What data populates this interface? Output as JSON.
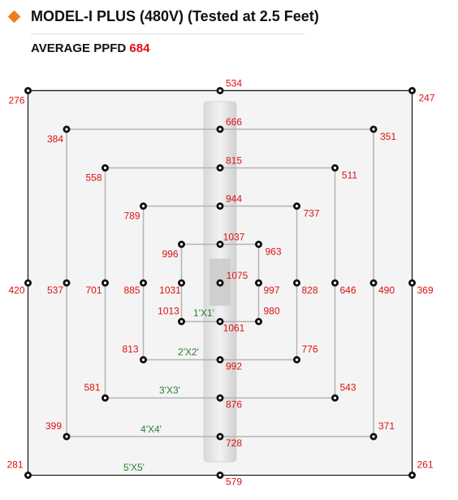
{
  "header": {
    "title": "MODEL-I PLUS (480V) (Tested at 2.5 Feet)",
    "average_label": "AVERAGE PPFD",
    "average_value": 684
  },
  "center": {
    "value": 1075
  },
  "rings": [
    {
      "label": "5'X5'",
      "values": [
        276,
        534,
        247,
        420,
        369,
        281,
        579,
        261
      ]
    },
    {
      "label": "4'X4'",
      "values": [
        384,
        666,
        351,
        537,
        490,
        399,
        728,
        371
      ]
    },
    {
      "label": "3'X3'",
      "values": [
        558,
        815,
        511,
        701,
        646,
        581,
        876,
        543
      ]
    },
    {
      "label": "2'X2'",
      "values": [
        789,
        944,
        737,
        885,
        828,
        813,
        992,
        776
      ]
    },
    {
      "label": "1'X1'",
      "values": [
        996,
        1037,
        963,
        1031,
        997,
        1013,
        1061,
        980
      ]
    }
  ]
}
